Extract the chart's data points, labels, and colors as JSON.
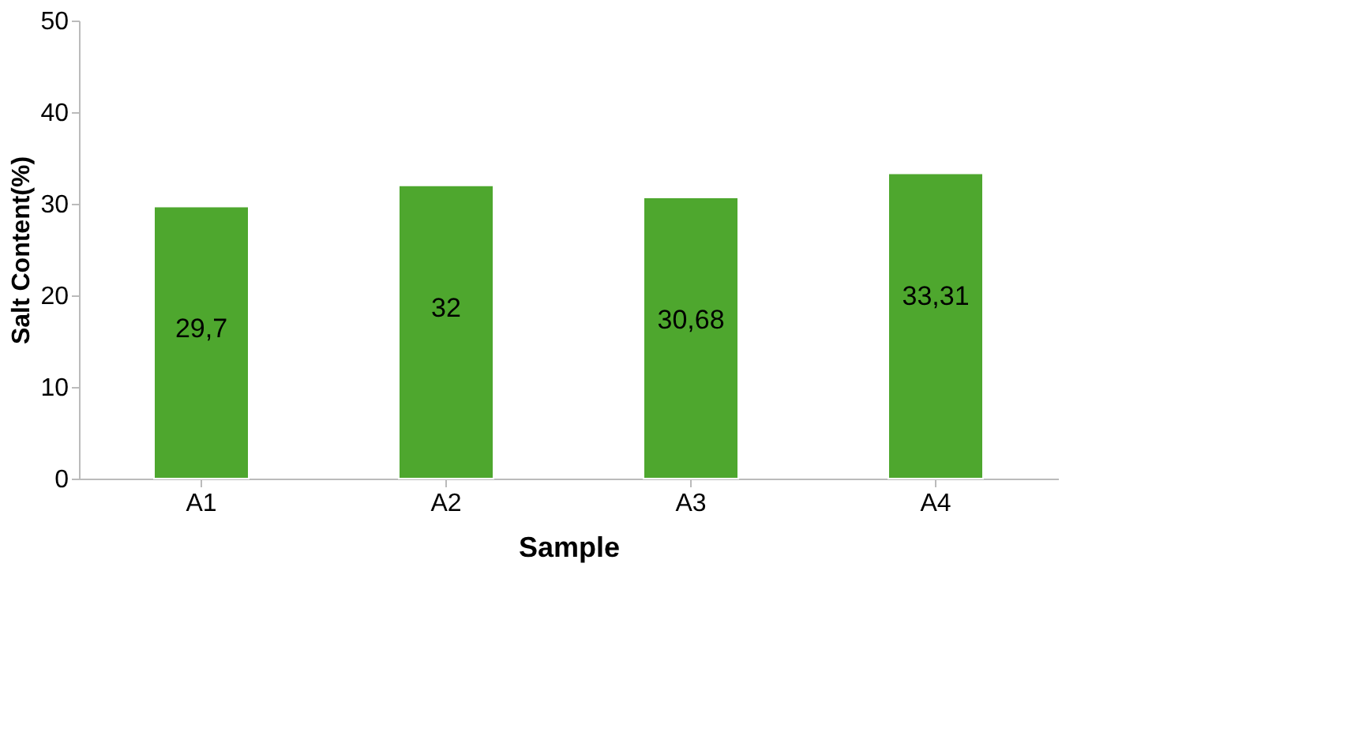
{
  "chart_data": {
    "type": "bar",
    "xlabel": "Sample",
    "ylabel": "Salt Content(%)",
    "categories": [
      "A1",
      "A2",
      "A3",
      "A4"
    ],
    "values": [
      29.7,
      32,
      30.68,
      33.31
    ],
    "value_labels": [
      "29,7",
      "32",
      "30,68",
      "33,31"
    ],
    "color": "#4ea72e",
    "ylim": [
      0,
      50
    ],
    "yticks": [
      0,
      10,
      20,
      30,
      40,
      50
    ],
    "grid": false
  }
}
